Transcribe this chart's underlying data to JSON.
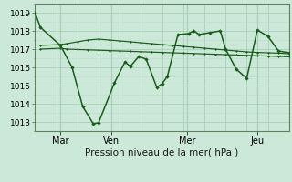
{
  "background_color": "#cce8d8",
  "grid_color_major": "#aacfba",
  "grid_color_minor": "#bbddc8",
  "line_color": "#1a5c1a",
  "xlabel": "Pression niveau de la mer( hPa )",
  "ylim": [
    1012.5,
    1019.5
  ],
  "yticks": [
    1013,
    1014,
    1015,
    1016,
    1017,
    1018,
    1019
  ],
  "xlim": [
    0,
    24
  ],
  "xtick_labels": [
    "Mar",
    "Ven",
    "Mer",
    "Jeu"
  ],
  "xtick_positions": [
    2.4,
    7.2,
    14.4,
    21.0
  ],
  "day_vlines": [
    2.4,
    7.2,
    14.4,
    21.0
  ],
  "line1_x": [
    0,
    0.5,
    2.4,
    3.5,
    4.5,
    5.5,
    6.0,
    7.5,
    8.5,
    9.0,
    9.8,
    10.5,
    11.5,
    12.0,
    12.5,
    13.5,
    14.5,
    15.0,
    15.5,
    16.5,
    17.5,
    18.0,
    19.0,
    20.0,
    21.0,
    22.0,
    23.0,
    24.0
  ],
  "line1_y": [
    1019.0,
    1018.2,
    1017.2,
    1016.0,
    1013.85,
    1012.9,
    1012.95,
    1015.15,
    1016.3,
    1016.05,
    1016.6,
    1016.45,
    1014.9,
    1015.1,
    1015.5,
    1017.8,
    1017.85,
    1018.0,
    1017.8,
    1017.9,
    1018.0,
    1017.0,
    1015.9,
    1015.4,
    1018.05,
    1017.7,
    1016.9,
    1016.8
  ],
  "line2_x": [
    0.5,
    2.4,
    3.0,
    4.0,
    5.0,
    6.0,
    7.0,
    8.0,
    9.0,
    10.0,
    11.0,
    12.0,
    13.0,
    14.0,
    15.0,
    16.0,
    17.0,
    18.0,
    19.0,
    20.0,
    21.0,
    22.0,
    23.0,
    24.0
  ],
  "line2_y": [
    1017.2,
    1017.25,
    1017.3,
    1017.4,
    1017.5,
    1017.55,
    1017.5,
    1017.45,
    1017.4,
    1017.35,
    1017.3,
    1017.25,
    1017.2,
    1017.15,
    1017.1,
    1017.05,
    1017.0,
    1016.95,
    1016.9,
    1016.85,
    1016.82,
    1016.8,
    1016.78,
    1016.75
  ],
  "line3_x": [
    0.5,
    2.4,
    3.0,
    4.0,
    5.0,
    6.0,
    7.0,
    8.0,
    9.0,
    10.0,
    11.0,
    12.0,
    13.0,
    14.0,
    15.0,
    16.0,
    17.0,
    18.0,
    19.0,
    20.0,
    21.0,
    22.0,
    23.0,
    24.0
  ],
  "line3_y": [
    1017.0,
    1017.05,
    1017.0,
    1016.98,
    1016.96,
    1016.94,
    1016.92,
    1016.9,
    1016.88,
    1016.86,
    1016.84,
    1016.82,
    1016.8,
    1016.78,
    1016.76,
    1016.74,
    1016.72,
    1016.7,
    1016.68,
    1016.66,
    1016.64,
    1016.62,
    1016.6,
    1016.58
  ],
  "figsize": [
    3.2,
    2.0
  ],
  "dpi": 100
}
